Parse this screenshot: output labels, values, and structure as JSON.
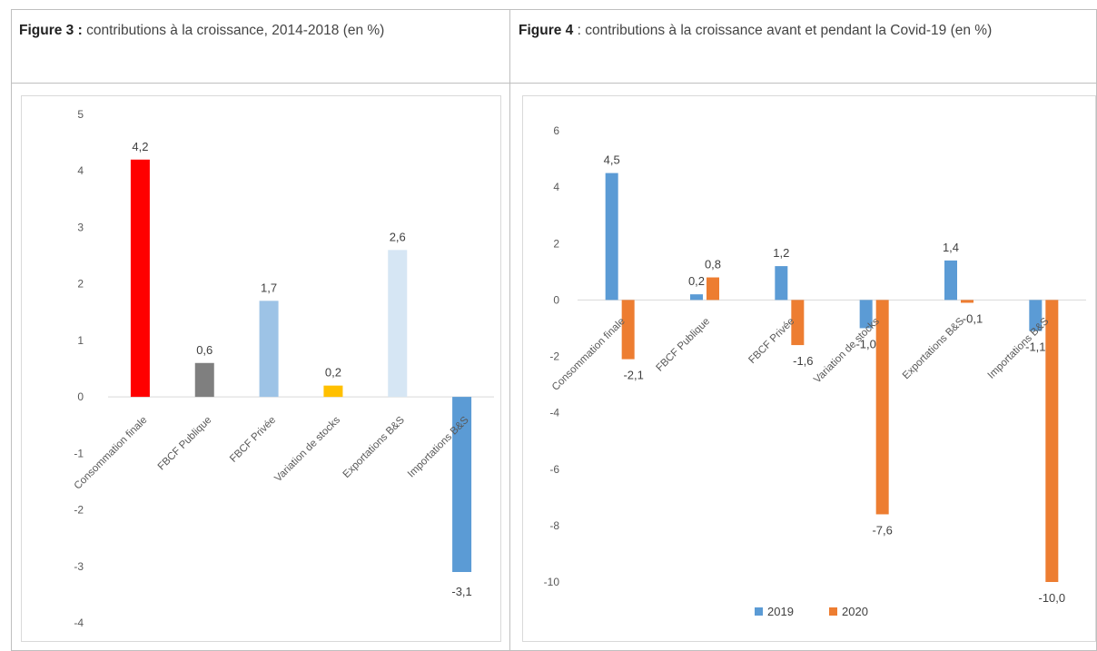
{
  "figure3": {
    "caption_bold": "Figure 3 :",
    "caption_text": " contributions à la croissance, 2014-2018 (en %)"
  },
  "figure4": {
    "caption_bold": "Figure 4",
    "caption_text": " : contributions à la croissance avant et pendant la Covid-19 (en %)"
  },
  "chart_data": [
    {
      "type": "bar",
      "title": "",
      "categories": [
        "Consommation finale",
        "FBCF Publique",
        "FBCF Privée",
        "Variation de stocks",
        "Exportations B&S",
        "Importations B&S"
      ],
      "values": [
        4.2,
        0.6,
        1.7,
        0.2,
        2.6,
        -3.1
      ],
      "data_labels": [
        "4,2",
        "0,6",
        "1,7",
        "0,2",
        "2,6",
        "-3,1"
      ],
      "colors": [
        "#ff0000",
        "#7f7f7f",
        "#9dc3e6",
        "#ffc000",
        "#d6e6f4",
        "#5b9bd5"
      ],
      "yticks": [
        "5",
        "4",
        "3",
        "2",
        "1",
        "0",
        "-1",
        "-2",
        "-3",
        "-4"
      ],
      "ylim": [
        -4,
        5
      ],
      "grid": false,
      "legend": "none"
    },
    {
      "type": "bar",
      "title": "",
      "categories": [
        "Consommation finale",
        "FBCF Publique",
        "FBCF Privée",
        "Variation de stocks",
        "Exportations B&S",
        "Importations B&S"
      ],
      "series": [
        {
          "name": "2019",
          "values": [
            4.5,
            0.2,
            1.2,
            -1.0,
            1.4,
            -1.1
          ],
          "data_labels": [
            "4,5",
            "0,2",
            "1,2",
            "-1,0",
            "1,4",
            "-1,1"
          ],
          "color": "#5b9bd5"
        },
        {
          "name": "2020",
          "values": [
            -2.1,
            0.8,
            -1.6,
            -7.6,
            -0.1,
            -10.0
          ],
          "data_labels": [
            "-2,1",
            "0,8",
            "-1,6",
            "-7,6",
            "-0,1",
            "-10,0"
          ],
          "color": "#ed7d31"
        }
      ],
      "yticks": [
        "6",
        "4",
        "2",
        "0",
        "-2",
        "-4",
        "-6",
        "-8",
        "-10"
      ],
      "ylim": [
        -10,
        6
      ],
      "grid": false,
      "legend": "bottom"
    }
  ]
}
